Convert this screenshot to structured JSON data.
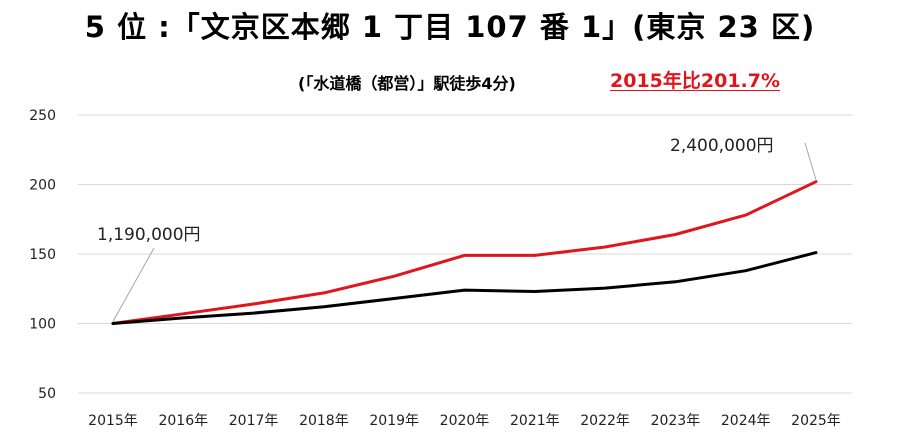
{
  "title": "5 位 :「文京区本郷 1 丁目 107 番 1」(東京 23 区)",
  "subtitle": "(「水道橋（都営）」駅徒歩4分)",
  "badge": "2015年比201.7%",
  "chart_data": {
    "type": "line",
    "categories": [
      "2015年",
      "2016年",
      "2017年",
      "2018年",
      "2019年",
      "2020年",
      "2021年",
      "2022年",
      "2023年",
      "2024年",
      "2025年"
    ],
    "ylim": [
      50,
      250
    ],
    "yticks": [
      50,
      100,
      150,
      200,
      250
    ],
    "grid": true,
    "series": [
      {
        "color": "#e0161e",
        "values": [
          100,
          107,
          114,
          122,
          134,
          149,
          149,
          155,
          164,
          178,
          202
        ]
      },
      {
        "color": "#000000",
        "values": [
          100,
          104,
          107.5,
          112,
          118,
          124,
          123,
          125.5,
          130,
          138,
          151
        ]
      }
    ],
    "annotations": [
      {
        "text": "1,190,000円",
        "category_index": 0,
        "series_index": 0
      },
      {
        "text": "2,400,000円",
        "category_index": 10,
        "series_index": 0
      }
    ]
  }
}
